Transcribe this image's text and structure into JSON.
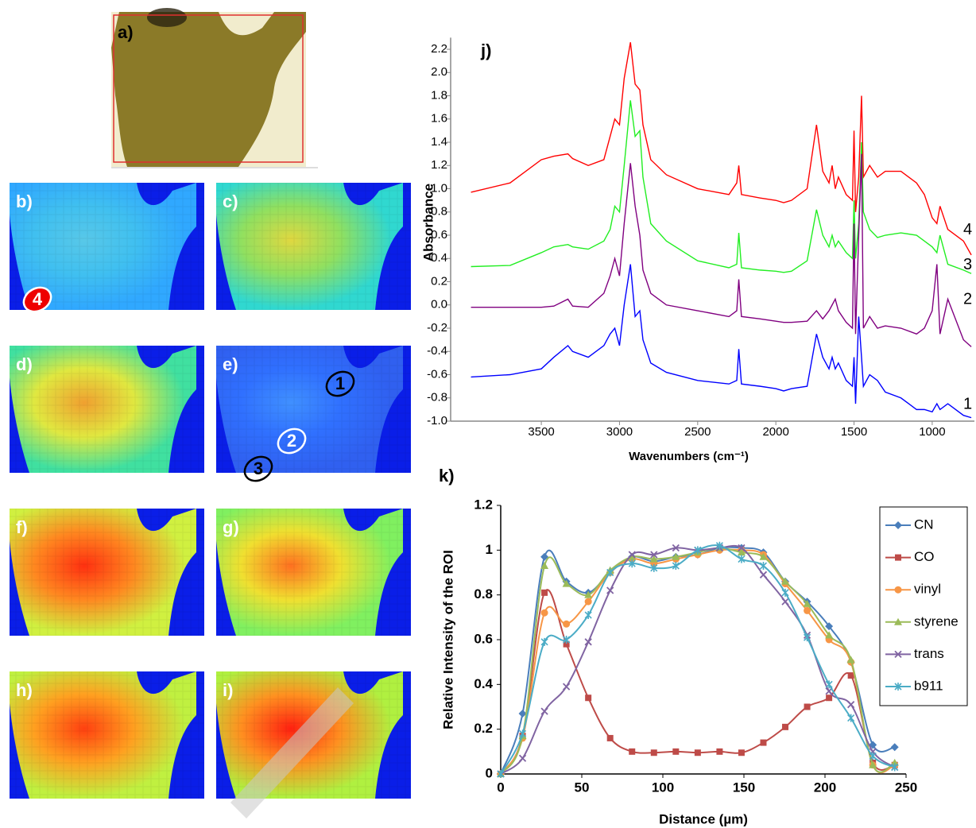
{
  "image_panels": [
    {
      "label": "a)"
    },
    {
      "label": "b)"
    },
    {
      "label": "c)"
    },
    {
      "label": "d)"
    },
    {
      "label": "e)"
    },
    {
      "label": "f)"
    },
    {
      "label": "g)"
    },
    {
      "label": "h)"
    },
    {
      "label": "i)"
    }
  ],
  "roi_markers": [
    {
      "label": "1"
    },
    {
      "label": "2"
    },
    {
      "label": "3"
    },
    {
      "label": "4"
    }
  ],
  "chart_data": [
    {
      "type": "line",
      "title": "j)",
      "x_label": "Wavenumbers (cm⁻¹)",
      "y_label": "Absorbance",
      "x": [
        3950,
        3700,
        3500,
        3420,
        3330,
        3300,
        3200,
        3100,
        3060,
        3030,
        3000,
        2970,
        2930,
        2900,
        2870,
        2850,
        2800,
        2700,
        2500,
        2300,
        2250,
        2237,
        2220,
        2100,
        2000,
        1950,
        1900,
        1800,
        1740,
        1700,
        1660,
        1640,
        1620,
        1600,
        1550,
        1510,
        1500,
        1490,
        1470,
        1452,
        1440,
        1400,
        1350,
        1300,
        1200,
        1100,
        1050,
        1000,
        970,
        950,
        900,
        800,
        750
      ],
      "xlim": [
        4080,
        730
      ],
      "xticks": [
        3500,
        3000,
        2500,
        2000,
        1500,
        1000
      ],
      "ylim": [
        -1.0,
        2.3
      ],
      "yticks": [
        {
          "value": -1,
          "label": "-1.0"
        },
        -0.8,
        -0.6,
        -0.4,
        -0.2,
        {
          "value": 0,
          "label": "0.0"
        },
        0.2,
        0.4,
        0.6,
        0.8,
        {
          "value": 1,
          "label": "1.0"
        },
        1.2,
        1.4,
        1.6,
        1.8,
        {
          "value": 2,
          "label": "2.0"
        },
        2.2
      ],
      "series": [
        {
          "name": "4",
          "color": "#ff0000",
          "values": [
            0.97,
            1.05,
            1.25,
            1.28,
            1.3,
            1.26,
            1.2,
            1.25,
            1.45,
            1.6,
            1.55,
            1.95,
            2.26,
            1.9,
            1.85,
            1.55,
            1.25,
            1.12,
            1.0,
            0.95,
            1.05,
            1.2,
            0.95,
            0.92,
            0.9,
            0.88,
            0.9,
            1.0,
            1.55,
            1.15,
            1.05,
            1.2,
            1.0,
            1.1,
            0.95,
            0.9,
            1.5,
            0.8,
            1.1,
            1.8,
            1.1,
            1.2,
            1.1,
            1.15,
            1.15,
            1.05,
            0.95,
            0.75,
            0.7,
            0.85,
            0.65,
            0.55,
            0.43
          ]
        },
        {
          "name": "3",
          "color": "#22ee22",
          "values": [
            0.33,
            0.34,
            0.45,
            0.5,
            0.52,
            0.5,
            0.48,
            0.55,
            0.65,
            0.85,
            0.8,
            1.2,
            1.76,
            1.45,
            1.5,
            1.1,
            0.7,
            0.55,
            0.38,
            0.32,
            0.35,
            0.62,
            0.32,
            0.3,
            0.29,
            0.28,
            0.29,
            0.38,
            0.82,
            0.6,
            0.5,
            0.6,
            0.5,
            0.55,
            0.45,
            0.4,
            0.9,
            0.4,
            0.7,
            1.4,
            0.8,
            0.65,
            0.58,
            0.6,
            0.62,
            0.6,
            0.55,
            0.5,
            0.45,
            0.6,
            0.35,
            0.3,
            0.27
          ]
        },
        {
          "name": "2",
          "color": "#800080",
          "values": [
            -0.02,
            -0.02,
            -0.02,
            -0.01,
            0.05,
            -0.01,
            -0.02,
            0.1,
            0.25,
            0.4,
            0.25,
            0.7,
            1.22,
            0.85,
            0.6,
            0.3,
            0.1,
            0,
            -0.05,
            -0.1,
            -0.05,
            0.22,
            -0.1,
            -0.12,
            -0.14,
            -0.15,
            -0.15,
            -0.14,
            -0.05,
            -0.12,
            -0.05,
            0,
            0.05,
            -0.05,
            -0.15,
            -0.2,
            0.7,
            -0.25,
            0.6,
            1.3,
            -0.2,
            -0.1,
            -0.2,
            -0.18,
            -0.2,
            -0.25,
            -0.2,
            -0.05,
            0.35,
            -0.25,
            0.05,
            -0.3,
            -0.36
          ]
        },
        {
          "name": "1",
          "color": "#0000ff",
          "values": [
            -0.62,
            -0.6,
            -0.55,
            -0.45,
            -0.35,
            -0.4,
            -0.45,
            -0.35,
            -0.25,
            -0.2,
            -0.35,
            0,
            0.35,
            -0.1,
            -0.05,
            -0.3,
            -0.5,
            -0.58,
            -0.65,
            -0.68,
            -0.65,
            -0.38,
            -0.68,
            -0.7,
            -0.72,
            -0.74,
            -0.72,
            -0.7,
            -0.25,
            -0.45,
            -0.55,
            -0.45,
            -0.55,
            -0.5,
            -0.65,
            -0.7,
            -0.45,
            -0.85,
            -0.1,
            -0.45,
            -0.7,
            -0.6,
            -0.65,
            -0.75,
            -0.8,
            -0.9,
            -0.9,
            -0.92,
            -0.85,
            -0.9,
            -0.85,
            -0.95,
            -0.97
          ]
        }
      ]
    },
    {
      "type": "line",
      "title": "k)",
      "x_label": "Distance (µm)",
      "y_label": "Relative Intensity of the ROI",
      "legend": "right",
      "x": [
        0,
        13.5,
        27,
        40.5,
        54,
        67.5,
        81,
        94.5,
        108,
        121.5,
        135,
        148.5,
        162,
        175.5,
        189,
        202.5,
        216,
        229.5,
        243
      ],
      "xlim": [
        0,
        250
      ],
      "xticks": [
        0,
        50,
        100,
        150,
        200,
        250
      ],
      "ylim": [
        0,
        1.2
      ],
      "yticks": [
        0,
        0.2,
        0.4,
        0.6,
        0.8,
        1,
        1.2
      ],
      "series": [
        {
          "name": "CN",
          "color": "#4a7ebb",
          "marker": "diamond",
          "values": [
            0,
            0.27,
            0.97,
            0.86,
            0.81,
            0.9,
            0.97,
            0.95,
            0.97,
            0.98,
            1.01,
            1.01,
            0.99,
            0.86,
            0.77,
            0.66,
            0.5,
            0.13,
            0.12
          ]
        },
        {
          "name": "CO",
          "color": "#be4b48",
          "marker": "square",
          "values": [
            0,
            0.17,
            0.81,
            0.58,
            0.34,
            0.16,
            0.1,
            0.095,
            0.1,
            0.095,
            0.1,
            0.095,
            0.14,
            0.21,
            0.3,
            0.34,
            0.44,
            0.05,
            0.04
          ]
        },
        {
          "name": "vinyl",
          "color": "#f79646",
          "marker": "circle",
          "values": [
            0,
            0.16,
            0.72,
            0.67,
            0.77,
            0.9,
            0.96,
            0.94,
            0.96,
            0.98,
            1.0,
            1.0,
            0.98,
            0.85,
            0.73,
            0.6,
            0.5,
            0.04,
            0.04
          ]
        },
        {
          "name": "styrene",
          "color": "#9bbb59",
          "marker": "triangle",
          "values": [
            0,
            0.17,
            0.93,
            0.85,
            0.8,
            0.91,
            0.97,
            0.96,
            0.97,
            0.99,
            1.01,
            0.99,
            0.97,
            0.86,
            0.76,
            0.62,
            0.51,
            0.04,
            0.05
          ]
        },
        {
          "name": "trans",
          "color": "#8064a2",
          "marker": "x",
          "values": [
            0,
            0.07,
            0.28,
            0.39,
            0.59,
            0.82,
            0.98,
            0.98,
            1.01,
            1.0,
            1.01,
            1.01,
            0.89,
            0.77,
            0.62,
            0.37,
            0.31,
            0.1,
            0.03
          ]
        },
        {
          "name": "b911",
          "color": "#4bacc6",
          "marker": "star",
          "values": [
            0,
            0.18,
            0.59,
            0.6,
            0.71,
            0.9,
            0.94,
            0.92,
            0.93,
            1.0,
            1.02,
            0.96,
            0.93,
            0.81,
            0.61,
            0.4,
            0.25,
            0.08,
            0.03
          ]
        }
      ]
    }
  ]
}
